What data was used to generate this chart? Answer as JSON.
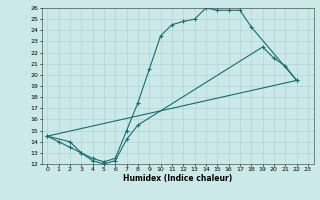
{
  "xlabel": "Humidex (Indice chaleur)",
  "xlim": [
    -0.5,
    23.5
  ],
  "ylim": [
    12,
    26
  ],
  "xticks": [
    0,
    1,
    2,
    3,
    4,
    5,
    6,
    7,
    8,
    9,
    10,
    11,
    12,
    13,
    14,
    15,
    16,
    17,
    18,
    19,
    20,
    21,
    22,
    23
  ],
  "yticks": [
    12,
    13,
    14,
    15,
    16,
    17,
    18,
    19,
    20,
    21,
    22,
    23,
    24,
    25,
    26
  ],
  "bg_color": "#cce9e9",
  "grid_color": "#b0d4d4",
  "line_color": "#1a6b6b",
  "curve1_x": [
    0,
    1,
    2,
    3,
    4,
    5,
    6,
    7,
    8,
    9,
    10,
    11,
    12,
    13,
    14,
    15,
    16,
    17,
    18,
    22
  ],
  "curve1_y": [
    14.5,
    14.0,
    13.5,
    13.0,
    12.5,
    12.2,
    12.5,
    15.0,
    17.5,
    20.5,
    23.5,
    24.5,
    24.8,
    25.0,
    26.0,
    25.8,
    25.8,
    25.8,
    24.3,
    19.5
  ],
  "curve2_x": [
    0,
    2,
    3,
    4,
    5,
    6,
    7,
    8,
    19,
    20,
    21,
    22
  ],
  "curve2_y": [
    14.5,
    14.0,
    13.0,
    12.3,
    12.0,
    12.3,
    14.2,
    15.5,
    22.5,
    21.5,
    20.8,
    19.5
  ],
  "curve3_x": [
    0,
    22
  ],
  "curve3_y": [
    14.5,
    19.5
  ]
}
